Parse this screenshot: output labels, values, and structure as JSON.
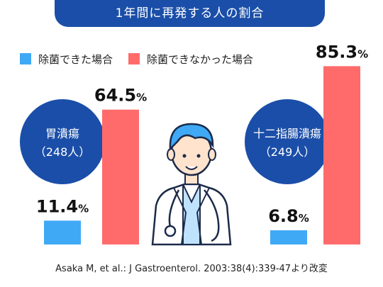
{
  "header": {
    "title": "1年間に再発する人の割合"
  },
  "legend": [
    {
      "label": "除菌できた場合",
      "color": "#3fa9f5"
    },
    {
      "label": "除菌できなかった場合",
      "color": "#ff6b6b"
    }
  ],
  "colors": {
    "accent": "#1a4ea8"
  },
  "chart_data": {
    "type": "bar",
    "title": "1年間に再発する人の割合",
    "categories": [
      "胃潰瘍（248人）",
      "十二指腸潰瘍（249人）"
    ],
    "category_lines": [
      [
        "胃潰瘍",
        "（248人）"
      ],
      [
        "十二指腸潰瘍",
        "（249人）"
      ]
    ],
    "series": [
      {
        "name": "除菌できた場合",
        "values": [
          11.4,
          6.8
        ],
        "color": "#3fa9f5"
      },
      {
        "name": "除菌できなかった場合",
        "values": [
          64.5,
          85.3
        ],
        "color": "#ff6b6b"
      }
    ],
    "value_labels": [
      [
        "11.4",
        "6.8"
      ],
      [
        "64.5",
        "85.3"
      ]
    ],
    "unit": "%",
    "ylim": [
      0,
      100
    ],
    "grid": false,
    "legend_position": "top-left"
  },
  "illustration": {
    "icon": "doctor-icon"
  },
  "source": "Asaka M, et al.: J Gastroenterol. 2003:38(4):339-47より改変"
}
